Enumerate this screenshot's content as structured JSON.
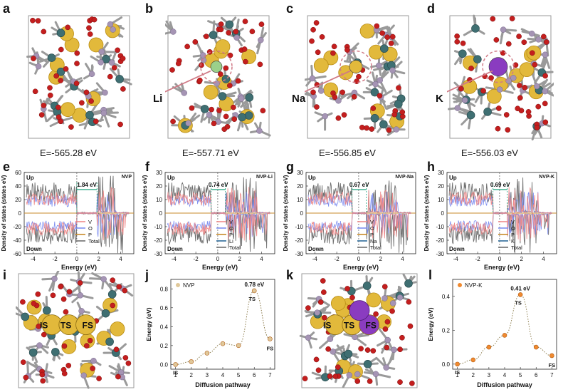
{
  "panels_top": [
    {
      "letter": "a",
      "ion": "",
      "energy": "E=-565.28 eV"
    },
    {
      "letter": "b",
      "ion": "Li",
      "energy": "E=-557.71 eV"
    },
    {
      "letter": "c",
      "ion": "Na",
      "energy": "E=-556.85 eV"
    },
    {
      "letter": "d",
      "ion": "K",
      "energy": "E=-556.03 eV"
    }
  ],
  "dos_common": {
    "ylabel": "Density of states (states eV)",
    "xlabel": "Energy (eV)",
    "up": "Up",
    "down": "Down",
    "xticks": [
      "-4",
      "-2",
      "0",
      "2",
      "4"
    ],
    "yticks_e": [
      "60",
      "40",
      "20",
      "0",
      "-20",
      "-40",
      "-60"
    ],
    "yticks_f": [
      "30",
      "20",
      "10",
      "0",
      "-10",
      "-20",
      "-30"
    ],
    "yticks_g": [
      "30",
      "20",
      "10",
      "0",
      "-10",
      "-20",
      "-30"
    ],
    "yticks_h": [
      "30",
      "20",
      "10",
      "0",
      "-10",
      "-20",
      "-30"
    ]
  },
  "dos_panels": [
    {
      "letter": "e",
      "tag": "NVP",
      "gap": "1.84 eV",
      "legend": [
        "V",
        "O",
        "P",
        "Total"
      ]
    },
    {
      "letter": "f",
      "tag": "NVP-Li",
      "gap": "0.74 eV",
      "legend": [
        "V",
        "O",
        "P",
        "Li",
        "Total"
      ]
    },
    {
      "letter": "g",
      "tag": "NVP-Na",
      "gap": "0.67 eV",
      "legend": [
        "V",
        "O",
        "P",
        "Na",
        "Total"
      ]
    },
    {
      "letter": "h",
      "tag": "NVP-K",
      "gap": "0.69 eV",
      "legend": [
        "V",
        "O",
        "P",
        "K",
        "Total"
      ]
    }
  ],
  "bottom_struct": [
    {
      "letter": "i",
      "labels": [
        "IS",
        "TS",
        "FS"
      ]
    },
    {
      "letter": "k",
      "labels": [
        "IS",
        "TS",
        "FS"
      ]
    }
  ],
  "colors": {
    "V": "#ee8a8a",
    "O": "#7f8ff0",
    "P": "#c88a2a",
    "Li": "#2d6a9a",
    "Na": "#2d6a9a",
    "K": "#2d6a9a",
    "Total": "#707070",
    "gap": "#19a07a"
  },
  "chart_data": [
    {
      "type": "line",
      "panel": "j",
      "series": [
        {
          "name": "NVP",
          "x": [
            1,
            2,
            3,
            4,
            5,
            6,
            7
          ],
          "values": [
            0.0,
            0.03,
            0.12,
            0.22,
            0.2,
            0.78,
            0.27
          ]
        }
      ],
      "xlabel": "Diffusion pathway",
      "ylabel": "Energy (eV)",
      "xticks": [
        "1",
        "2",
        "3",
        "4",
        "5",
        "6",
        "7"
      ],
      "yticks": [
        "0.0",
        "0.2",
        "0.4",
        "0.6",
        "0.8"
      ],
      "ylim": [
        -0.05,
        0.9
      ],
      "annotations": {
        "peak": "0.78 eV",
        "is": "IS",
        "ts": "TS",
        "fs": "FS"
      }
    },
    {
      "type": "line",
      "panel": "l",
      "series": [
        {
          "name": "NVP-K",
          "x": [
            1,
            2,
            3,
            4,
            5,
            6,
            7
          ],
          "values": [
            0.0,
            0.025,
            0.1,
            0.17,
            0.41,
            0.1,
            0.05
          ]
        }
      ],
      "xlabel": "Diffusion pathway",
      "ylabel": "Energy (eV)",
      "xticks": [
        "1",
        "2",
        "3",
        "4",
        "5",
        "6",
        "7"
      ],
      "yticks": [
        "0.0",
        "0.2",
        "0.4"
      ],
      "ylim": [
        -0.03,
        0.5
      ],
      "annotations": {
        "peak": "0.41 eV",
        "is": "IS",
        "ts": "TS",
        "fs": "FS"
      }
    }
  ]
}
